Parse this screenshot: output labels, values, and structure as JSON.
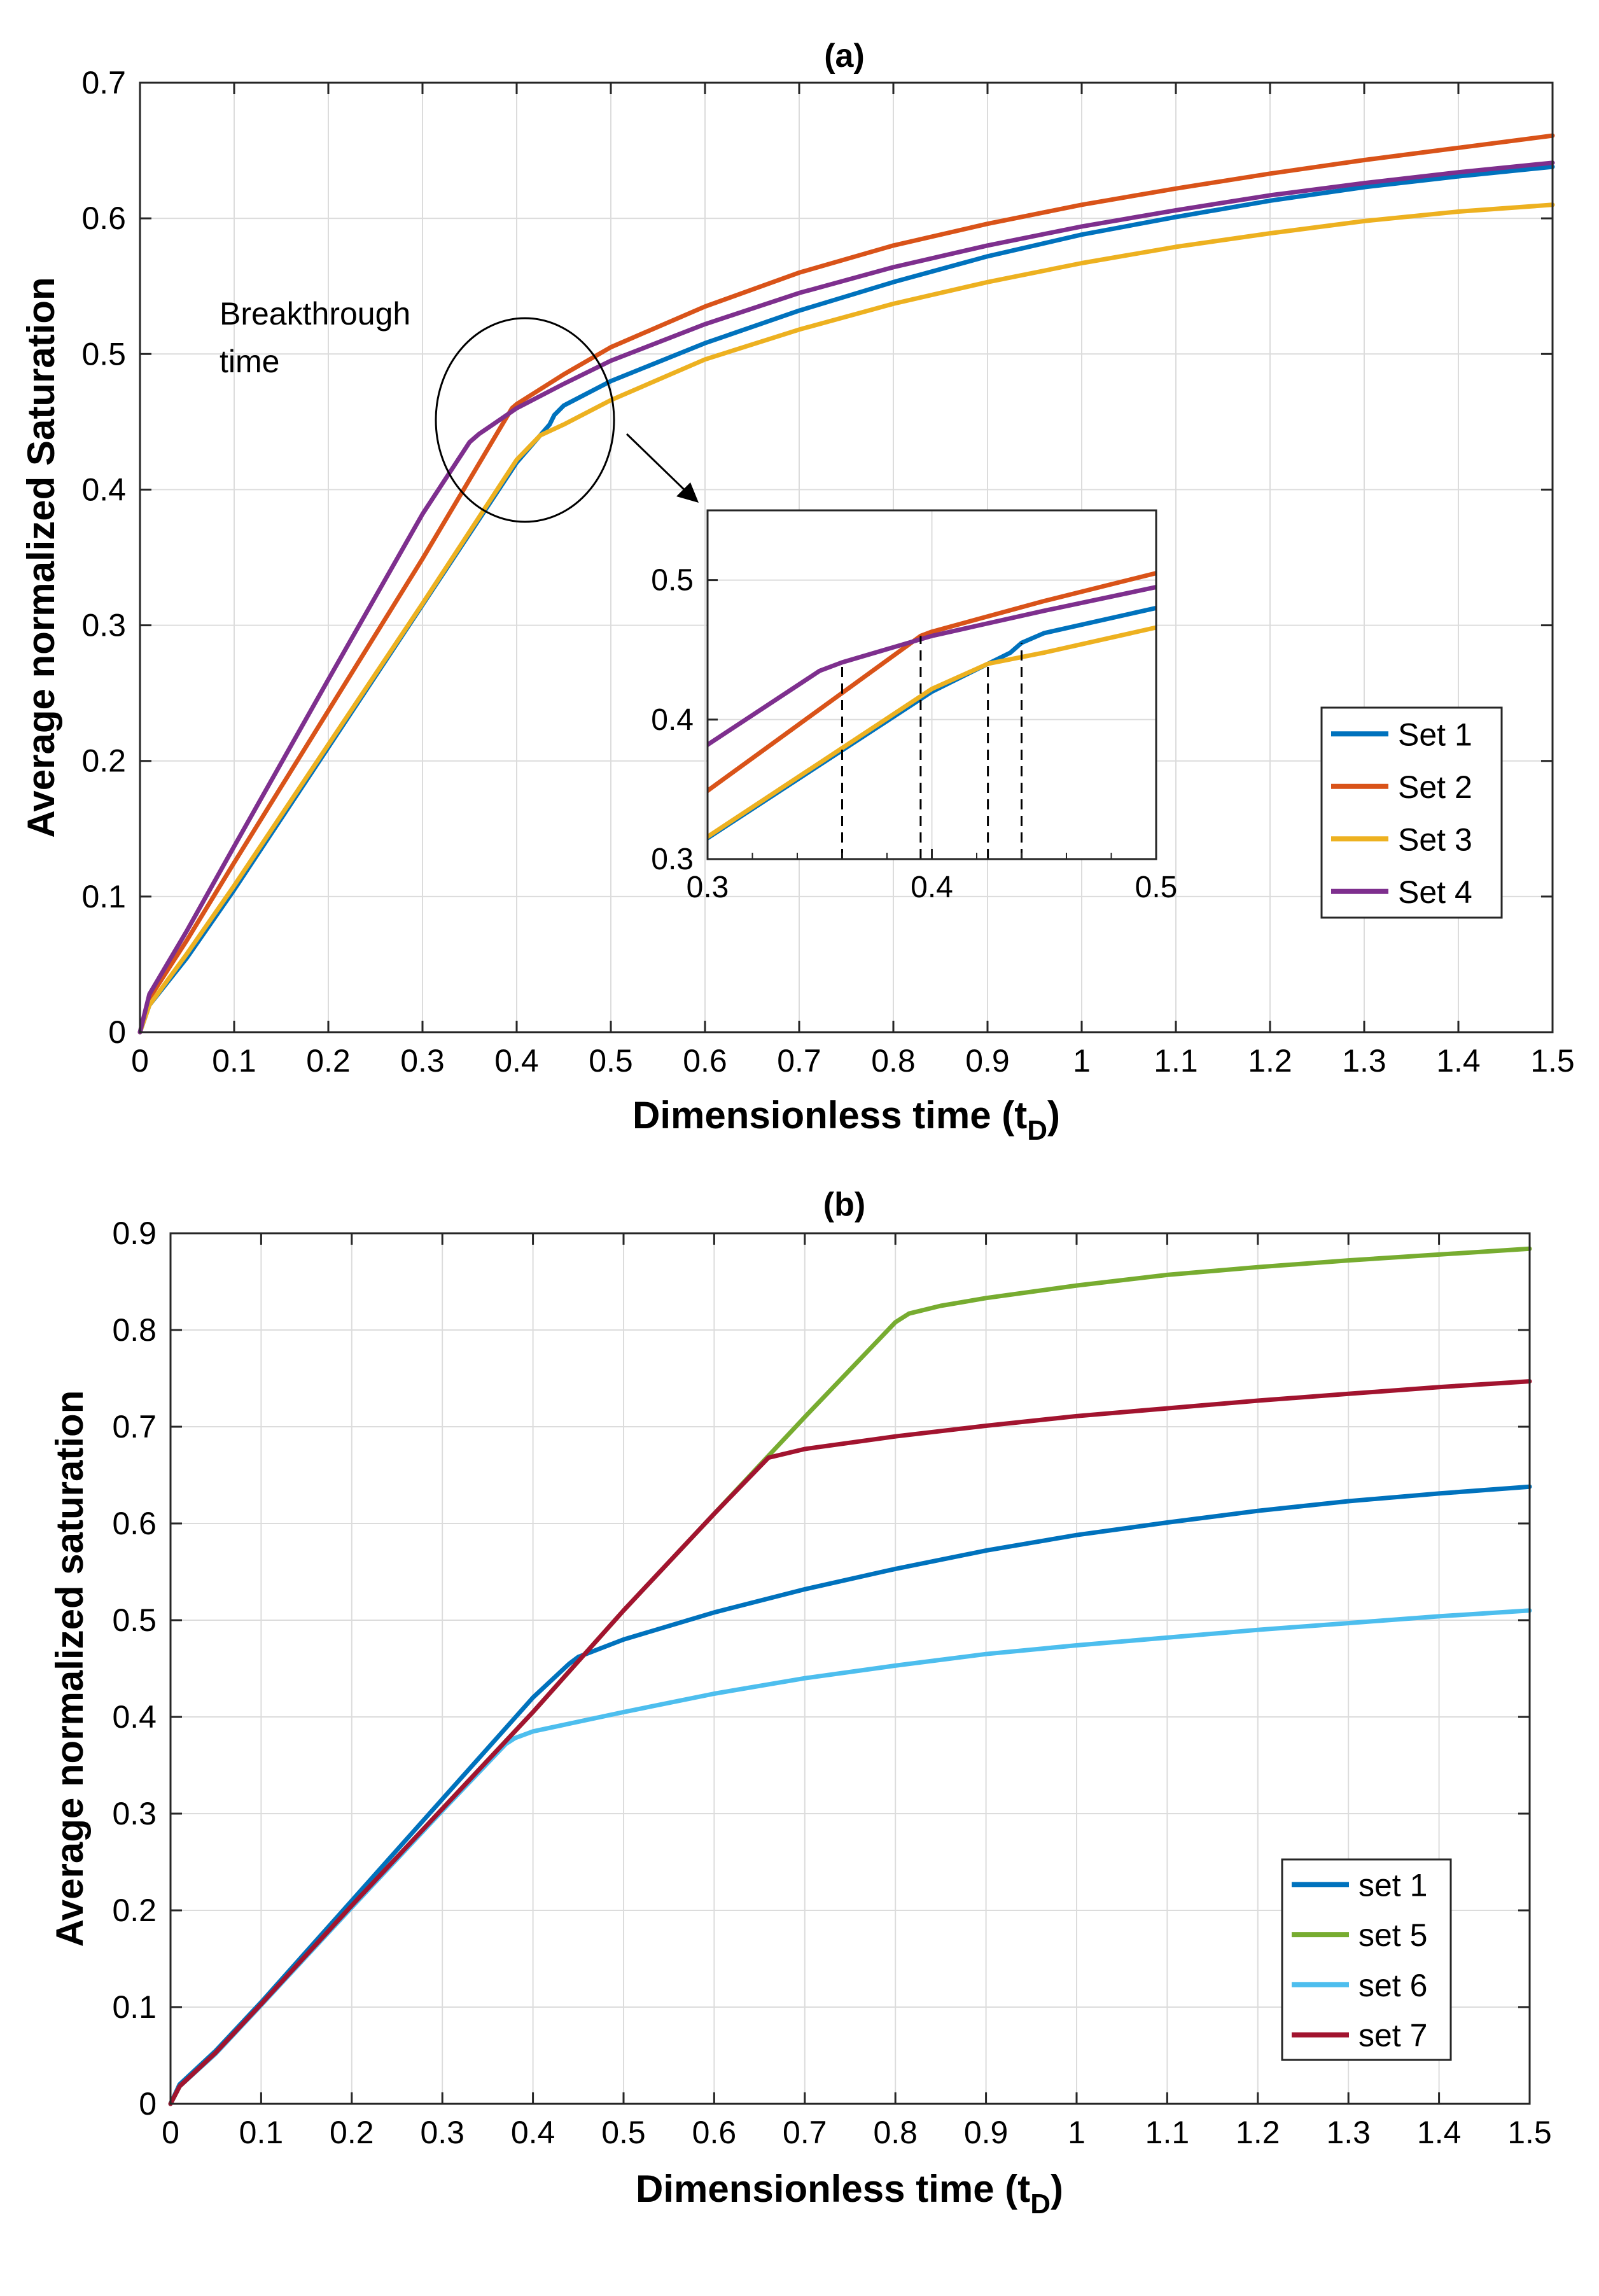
{
  "chart_data": [
    {
      "type": "line",
      "title": "(a)",
      "xlabel": "Dimensionless time",
      "xlabel_symbol": "t",
      "xlabel_subscript": "D",
      "ylabel": "Average normalized Saturation",
      "xlim": [
        0,
        1.5
      ],
      "ylim": [
        0,
        0.7
      ],
      "grid": true,
      "legend_position": "lower-right",
      "x_ticks": [
        0,
        0.1,
        0.2,
        0.3,
        0.4,
        0.5,
        0.6,
        0.7,
        0.8,
        0.9,
        1,
        1.1,
        1.2,
        1.3,
        1.4,
        1.5
      ],
      "y_ticks": [
        0,
        0.1,
        0.2,
        0.3,
        0.4,
        0.5,
        0.6,
        0.7
      ],
      "series": [
        {
          "name": "Set 1",
          "color": "#0072BD",
          "x": [
            0,
            0.01,
            0.05,
            0.1,
            0.2,
            0.3,
            0.4,
            0.435,
            0.44,
            0.45,
            0.5,
            0.6,
            0.7,
            0.8,
            0.9,
            1.0,
            1.1,
            1.2,
            1.3,
            1.4,
            1.5
          ],
          "y": [
            0,
            0.02,
            0.055,
            0.105,
            0.21,
            0.315,
            0.42,
            0.448,
            0.455,
            0.462,
            0.48,
            0.508,
            0.532,
            0.553,
            0.572,
            0.588,
            0.601,
            0.613,
            0.623,
            0.631,
            0.638
          ]
        },
        {
          "name": "Set 2",
          "color": "#D95319",
          "x": [
            0,
            0.01,
            0.05,
            0.1,
            0.2,
            0.3,
            0.395,
            0.4,
            0.45,
            0.5,
            0.6,
            0.7,
            0.8,
            0.9,
            1.0,
            1.1,
            1.2,
            1.3,
            1.4,
            1.5
          ],
          "y": [
            0,
            0.025,
            0.068,
            0.125,
            0.237,
            0.349,
            0.46,
            0.463,
            0.485,
            0.505,
            0.535,
            0.56,
            0.58,
            0.596,
            0.61,
            0.622,
            0.633,
            0.643,
            0.652,
            0.661
          ]
        },
        {
          "name": "Set 3",
          "color": "#EDB120",
          "x": [
            0,
            0.01,
            0.05,
            0.1,
            0.2,
            0.3,
            0.4,
            0.425,
            0.45,
            0.5,
            0.6,
            0.7,
            0.8,
            0.9,
            1.0,
            1.1,
            1.2,
            1.3,
            1.4,
            1.5
          ],
          "y": [
            0,
            0.02,
            0.058,
            0.108,
            0.212,
            0.316,
            0.422,
            0.44,
            0.448,
            0.466,
            0.496,
            0.518,
            0.537,
            0.553,
            0.567,
            0.579,
            0.589,
            0.598,
            0.605,
            0.61
          ]
        },
        {
          "name": "Set 4",
          "color": "#7E2F8E",
          "x": [
            0,
            0.01,
            0.05,
            0.1,
            0.2,
            0.3,
            0.35,
            0.36,
            0.4,
            0.45,
            0.5,
            0.6,
            0.7,
            0.8,
            0.9,
            1.0,
            1.1,
            1.2,
            1.3,
            1.4,
            1.5
          ],
          "y": [
            0,
            0.028,
            0.075,
            0.137,
            0.26,
            0.382,
            0.435,
            0.441,
            0.46,
            0.478,
            0.495,
            0.522,
            0.545,
            0.564,
            0.58,
            0.594,
            0.606,
            0.617,
            0.626,
            0.634,
            0.641
          ]
        }
      ],
      "annotation": {
        "line1": "Breakthrough",
        "line2": "time"
      },
      "inset": {
        "xlim": [
          0.3,
          0.5
        ],
        "ylim": [
          0.3,
          0.55
        ],
        "x_ticks": [
          0.3,
          0.4,
          0.5
        ],
        "y_ticks": [
          0.3,
          0.4,
          0.5
        ],
        "breakthrough_times": [
          0.36,
          0.395,
          0.425,
          0.44
        ]
      }
    },
    {
      "type": "line",
      "title": "(b)",
      "xlabel": "Dimensionless time",
      "xlabel_symbol": "t",
      "xlabel_subscript": "D",
      "ylabel": "Average normalized saturation",
      "xlim": [
        0,
        1.5
      ],
      "ylim": [
        0,
        0.9
      ],
      "grid": true,
      "legend_position": "lower-right",
      "x_ticks": [
        0,
        0.1,
        0.2,
        0.3,
        0.4,
        0.5,
        0.6,
        0.7,
        0.8,
        0.9,
        1,
        1.1,
        1.2,
        1.3,
        1.4,
        1.5
      ],
      "y_ticks": [
        0,
        0.1,
        0.2,
        0.3,
        0.4,
        0.5,
        0.6,
        0.7,
        0.8,
        0.9
      ],
      "series": [
        {
          "name": "set 1",
          "color": "#0072BD",
          "x": [
            0,
            0.01,
            0.05,
            0.1,
            0.2,
            0.3,
            0.4,
            0.44,
            0.45,
            0.5,
            0.6,
            0.7,
            0.8,
            0.9,
            1.0,
            1.1,
            1.2,
            1.3,
            1.4,
            1.5
          ],
          "y": [
            0,
            0.02,
            0.055,
            0.105,
            0.21,
            0.315,
            0.42,
            0.455,
            0.462,
            0.48,
            0.508,
            0.532,
            0.553,
            0.572,
            0.588,
            0.601,
            0.613,
            0.623,
            0.631,
            0.638
          ]
        },
        {
          "name": "set 5",
          "color": "#77AC30",
          "x": [
            0,
            0.01,
            0.05,
            0.1,
            0.2,
            0.3,
            0.4,
            0.5,
            0.6,
            0.7,
            0.8,
            0.815,
            0.85,
            0.9,
            1.0,
            1.1,
            1.2,
            1.3,
            1.4,
            1.5
          ],
          "y": [
            0,
            0.018,
            0.053,
            0.103,
            0.205,
            0.305,
            0.405,
            0.51,
            0.61,
            0.71,
            0.808,
            0.817,
            0.825,
            0.833,
            0.846,
            0.857,
            0.865,
            0.872,
            0.878,
            0.884
          ]
        },
        {
          "name": "set 6",
          "color": "#4DBEEE",
          "x": [
            0,
            0.01,
            0.05,
            0.1,
            0.2,
            0.3,
            0.37,
            0.38,
            0.4,
            0.5,
            0.6,
            0.7,
            0.8,
            0.9,
            1.0,
            1.1,
            1.2,
            1.3,
            1.4,
            1.5
          ],
          "y": [
            0,
            0.018,
            0.052,
            0.102,
            0.203,
            0.303,
            0.372,
            0.378,
            0.385,
            0.405,
            0.424,
            0.44,
            0.453,
            0.465,
            0.474,
            0.482,
            0.49,
            0.497,
            0.504,
            0.51
          ]
        },
        {
          "name": "set 7",
          "color": "#A2142F",
          "x": [
            0,
            0.01,
            0.05,
            0.1,
            0.2,
            0.3,
            0.4,
            0.5,
            0.6,
            0.66,
            0.7,
            0.8,
            0.9,
            1.0,
            1.1,
            1.2,
            1.3,
            1.4,
            1.5
          ],
          "y": [
            0,
            0.018,
            0.053,
            0.103,
            0.205,
            0.305,
            0.405,
            0.51,
            0.61,
            0.668,
            0.677,
            0.69,
            0.701,
            0.711,
            0.719,
            0.727,
            0.734,
            0.741,
            0.747
          ]
        }
      ]
    }
  ]
}
